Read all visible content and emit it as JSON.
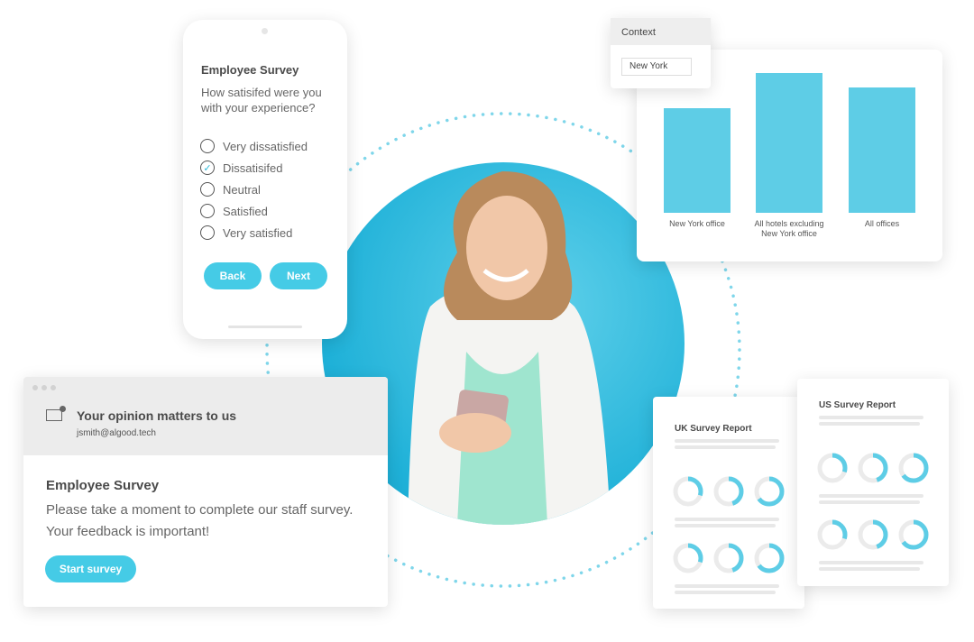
{
  "accent_color": "#45cbe6",
  "phone_survey": {
    "title": "Employee Survey",
    "question": "How satisifed were you with your experience?",
    "options": [
      {
        "label": "Very dissatisfied",
        "checked": false
      },
      {
        "label": "Dissatisifed",
        "checked": true
      },
      {
        "label": "Neutral",
        "checked": false
      },
      {
        "label": "Satisfied",
        "checked": false
      },
      {
        "label": "Very satisfied",
        "checked": false
      }
    ],
    "back_label": "Back",
    "next_label": "Next"
  },
  "context": {
    "header": "Context",
    "value": "New York"
  },
  "chart_data": {
    "type": "bar",
    "categories": [
      "New York office",
      "All hotels excluding New York office",
      "All offices"
    ],
    "values": [
      75,
      100,
      90
    ],
    "title": "",
    "xlabel": "",
    "ylabel": "",
    "grid": false
  },
  "email": {
    "subject": "Your opinion matters to us",
    "from": "jsmith@algood.tech",
    "title": "Employee Survey",
    "body": "Please take a moment to complete our staff survey. Your feedback is important!",
    "button": "Start survey"
  },
  "reports": [
    {
      "title": "UK Survey Report",
      "donuts": [
        0.3,
        0.45,
        0.65,
        0.3,
        0.45,
        0.65
      ]
    },
    {
      "title": "US Survey Report",
      "donuts": [
        0.3,
        0.45,
        0.65,
        0.3,
        0.45,
        0.65
      ]
    }
  ]
}
